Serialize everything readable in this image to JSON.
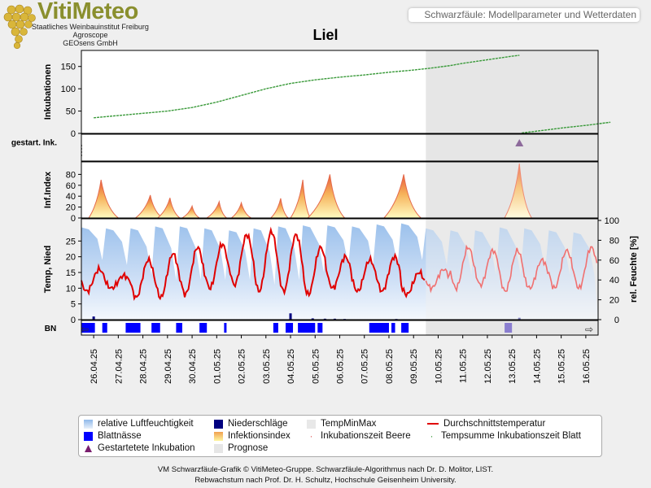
{
  "logo": {
    "title": "VitiMeteo",
    "lines": [
      "Staatliches Weinbauinstitut Freiburg",
      "Agroscope",
      "GEOsens GmbH"
    ]
  },
  "header": {
    "subtitle": "Schwarzfäule: Modellparameter und Wetterdaten"
  },
  "title": "Liel",
  "colors": {
    "incubation": "#3a9a3a",
    "temp": "#e00000",
    "humidity": "#a9c9ef",
    "precip": "#000080",
    "leafwet": "#0000ff",
    "started": "#7a1e6e",
    "forecast_bg": "#e6e6e6"
  },
  "chart_data": {
    "type": "line",
    "x_dates": [
      "26.04.25",
      "27.04.25",
      "28.04.25",
      "29.04.25",
      "30.04.25",
      "01.05.25",
      "02.05.25",
      "03.05.25",
      "04.05.25",
      "05.05.25",
      "06.05.25",
      "07.05.25",
      "08.05.25",
      "09.05.25",
      "10.05.25",
      "11.05.25",
      "12.05.25",
      "13.05.25",
      "14.05.25",
      "15.05.25",
      "16.05.25"
    ],
    "forecast_from": "09.05.25 12:00",
    "panels": {
      "incubation": {
        "ylabel": "Inkubationen",
        "ylim": [
          0,
          175
        ],
        "yticks": [
          0,
          50,
          100,
          150
        ],
        "series": [
          {
            "t": [
              0,
              1,
              2,
              3,
              4,
              5,
              6,
              7,
              8,
              9,
              10,
              11,
              12,
              13,
              13.5,
              14.5,
              15,
              16,
              17,
              17.3
            ],
            "v": [
              35,
              40,
              45,
              50,
              58,
              70,
              85,
              100,
              112,
              120,
              126,
              131,
              137,
              142,
              145,
              152,
              157,
              165,
              173,
              175
            ]
          },
          {
            "t": [
              17.4,
              18,
              19,
              20,
              21
            ],
            "v": [
              1,
              5,
              12,
              18,
              25
            ]
          }
        ]
      },
      "started_incubation": {
        "ylabel": "gestart. Ink.",
        "markers": [
          {
            "t": 17.3
          }
        ]
      },
      "infection_index": {
        "ylabel": "Inf.Index",
        "ylim": [
          0,
          100
        ],
        "yticks": [
          0,
          20,
          40,
          60,
          80
        ],
        "peaks": [
          {
            "start": -0.2,
            "peak": 0.3,
            "end": 1.0,
            "value": 70
          },
          {
            "start": 1.7,
            "peak": 2.3,
            "end": 2.8,
            "value": 42
          },
          {
            "start": 2.6,
            "peak": 3.1,
            "end": 3.5,
            "value": 37
          },
          {
            "start": 3.6,
            "peak": 4.0,
            "end": 4.3,
            "value": 22
          },
          {
            "start": 4.6,
            "peak": 5.1,
            "end": 5.4,
            "value": 30
          },
          {
            "start": 5.6,
            "peak": 6.0,
            "end": 6.4,
            "value": 28
          },
          {
            "start": 7.2,
            "peak": 7.6,
            "end": 7.9,
            "value": 36
          },
          {
            "start": 8.0,
            "peak": 8.5,
            "end": 8.8,
            "value": 70
          },
          {
            "start": 8.7,
            "peak": 9.6,
            "end": 10.2,
            "value": 80
          },
          {
            "start": 11.8,
            "peak": 12.6,
            "end": 13.3,
            "value": 80
          },
          {
            "start": 16.7,
            "peak": 17.3,
            "end": 17.8,
            "value": 100
          }
        ]
      },
      "weather": {
        "ylabel_left": "Temp, Nied",
        "ylim_left": [
          0,
          30
        ],
        "yticks_left": [
          0,
          5,
          10,
          15,
          20,
          25
        ],
        "ylabel_right": "rel. Feuchte [%]",
        "ylim_right": [
          0,
          100
        ],
        "yticks_right": [
          0,
          20,
          40,
          60,
          80,
          100
        ],
        "temp_daily": [
          {
            "min": 9,
            "max": 16
          },
          {
            "min": 10,
            "max": 14
          },
          {
            "min": 7,
            "max": 19
          },
          {
            "min": 7,
            "max": 21
          },
          {
            "min": 8,
            "max": 23
          },
          {
            "min": 10,
            "max": 24
          },
          {
            "min": 11,
            "max": 27
          },
          {
            "min": 9,
            "max": 28
          },
          {
            "min": 9,
            "max": 27
          },
          {
            "min": 8,
            "max": 23
          },
          {
            "min": 10,
            "max": 20
          },
          {
            "min": 9,
            "max": 19
          },
          {
            "min": 9,
            "max": 20
          },
          {
            "min": 8,
            "max": 15
          },
          {
            "min": 10,
            "max": 16
          },
          {
            "min": 10,
            "max": 23
          },
          {
            "min": 11,
            "max": 22
          },
          {
            "min": 9,
            "max": 22
          },
          {
            "min": 10,
            "max": 19
          },
          {
            "min": 10,
            "max": 22
          },
          {
            "min": 10,
            "max": 23
          }
        ],
        "humidity_daily": [
          {
            "min": 60,
            "max": 93
          },
          {
            "min": 55,
            "max": 92
          },
          {
            "min": 45,
            "max": 92
          },
          {
            "min": 40,
            "max": 94
          },
          {
            "min": 40,
            "max": 94
          },
          {
            "min": 40,
            "max": 92
          },
          {
            "min": 40,
            "max": 90
          },
          {
            "min": 35,
            "max": 92
          },
          {
            "min": 40,
            "max": 94
          },
          {
            "min": 48,
            "max": 95
          },
          {
            "min": 55,
            "max": 95
          },
          {
            "min": 55,
            "max": 94
          },
          {
            "min": 55,
            "max": 96
          },
          {
            "min": 60,
            "max": 97
          },
          {
            "min": 55,
            "max": 92
          },
          {
            "min": 45,
            "max": 90
          },
          {
            "min": 45,
            "max": 90
          },
          {
            "min": 45,
            "max": 93
          },
          {
            "min": 50,
            "max": 92
          },
          {
            "min": 45,
            "max": 90
          },
          {
            "min": 45,
            "max": 88
          }
        ],
        "precip": [
          {
            "t": 0.0,
            "v": 1.0
          },
          {
            "t": 8.0,
            "v": 2.0
          },
          {
            "t": 8.9,
            "v": 0.4
          },
          {
            "t": 9.4,
            "v": 0.3
          },
          {
            "t": 9.8,
            "v": 0.3
          },
          {
            "t": 10.2,
            "v": 0.2
          },
          {
            "t": 12.3,
            "v": 0.2
          },
          {
            "t": 17.3,
            "v": 0.6
          }
        ]
      },
      "leaf_wetness": {
        "ylabel": "BN",
        "intervals": [
          [
            0.0,
            0.55
          ],
          [
            0.85,
            1.05
          ],
          [
            1.8,
            2.4
          ],
          [
            2.85,
            3.2
          ],
          [
            3.85,
            4.1
          ],
          [
            4.8,
            5.1
          ],
          [
            5.8,
            5.9
          ],
          [
            7.8,
            8.0
          ],
          [
            8.3,
            8.6
          ],
          [
            8.8,
            9.5
          ],
          [
            9.6,
            9.8
          ],
          [
            11.7,
            12.5
          ],
          [
            12.6,
            12.75
          ],
          [
            13.0,
            13.3
          ]
        ],
        "forecast_intervals": [
          [
            17.2,
            17.5
          ]
        ]
      }
    }
  },
  "legend": {
    "items": [
      "relative Luftfeuchtigkeit",
      "Niederschläge",
      "TempMinMax",
      "Durchschnittstemperatur",
      "Blattnässe",
      "Infektionsindex",
      "Inkubationszeit Beere",
      "Tempsumme Inkubationszeit Blatt",
      "Gestartetete Inkubation",
      "Prognose"
    ]
  },
  "footer": {
    "line1": "VM Schwarzfäule-Grafik © VitiMeteo-Gruppe. Schwarzfäule-Algorithmus nach Dr. D. Molitor, LIST.",
    "line2": "Rebwachstum nach Prof. Dr. H. Schultz, Hochschule Geisenheim University."
  }
}
